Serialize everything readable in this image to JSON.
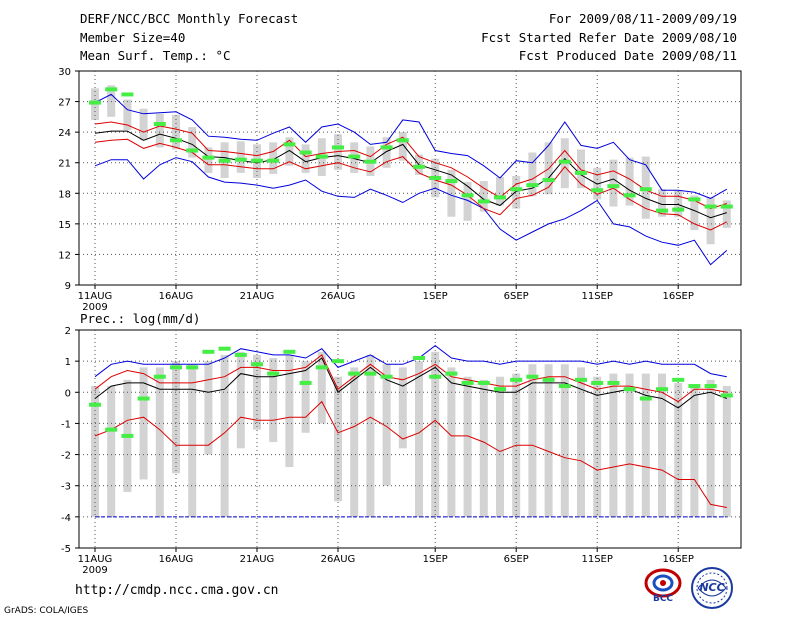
{
  "header": {
    "title": "DERF/NCC/BCC Monthly Forecast",
    "member_size": "Member Size=40",
    "variable": "Mean Surf. Temp.: °C",
    "period": "For 2009/08/11-2009/09/19",
    "refer_date": "Fcst Started Refer Date 2009/08/10",
    "produced_date": "Fcst Produced Date 2009/08/11"
  },
  "footer": {
    "url": "http://cmdp.ncc.cma.gov.cn",
    "grads": "GrADS: COLA/IGES",
    "logo_bcc": "BCC",
    "logo_ncc": "NCC"
  },
  "chart_data": [
    {
      "type": "line",
      "title": "Mean Surf. Temp.: °C",
      "x_tick_labels": [
        "11AUG",
        "16AUG",
        "21AUG",
        "26AUG",
        "1SEP",
        "6SEP",
        "11SEP",
        "16SEP"
      ],
      "x_tick_days": [
        1,
        6,
        11,
        16,
        22,
        27,
        32,
        37
      ],
      "year_label": "2009",
      "ylim": [
        9,
        30
      ],
      "y_ticks": [
        9,
        12,
        15,
        18,
        21,
        24,
        27,
        30
      ],
      "days": 40,
      "series": [
        {
          "name": "max",
          "color": "#0000dd",
          "values": [
            20.7,
            21.3,
            21.3,
            19.4,
            20.8,
            21.5,
            21.1,
            19.6,
            19.1,
            19.0,
            18.8,
            18.5,
            18.8,
            19.3,
            18.2,
            17.7,
            17.6,
            18.4,
            17.8,
            17.1,
            18.0,
            18.5,
            17.8,
            17.3,
            16.5,
            14.5,
            13.4,
            14.2,
            15.0,
            15.5,
            16.3,
            17.3,
            15.0,
            14.7,
            13.8,
            13.2,
            12.9,
            13.4,
            11.0,
            12.4
          ]
        },
        {
          "name": "max2",
          "color": "#0000dd",
          "values": [
            26.9,
            27.7,
            26.2,
            25.8,
            25.9,
            26.0,
            25.2,
            23.6,
            23.5,
            23.3,
            23.2,
            23.9,
            24.5,
            23.0,
            24.5,
            24.8,
            24.0,
            22.8,
            23.0,
            25.2,
            25.0,
            22.2,
            21.9,
            21.7,
            20.7,
            19.5,
            21.2,
            21.0,
            22.7,
            25.0,
            22.7,
            22.4,
            23.0,
            21.3,
            20.8,
            18.3,
            18.3,
            18.1,
            17.5,
            18.4
          ]
        },
        {
          "name": "upper-red",
          "color": "#dd0000",
          "values": [
            24.8,
            25.0,
            24.7,
            24.0,
            24.6,
            24.3,
            23.9,
            22.2,
            22.1,
            21.9,
            21.7,
            22.1,
            23.2,
            21.6,
            21.9,
            22.1,
            22.2,
            21.6,
            22.8,
            23.5,
            21.6,
            21.0,
            20.5,
            19.6,
            18.5,
            17.6,
            18.9,
            19.4,
            20.4,
            22.2,
            20.3,
            19.8,
            20.2,
            19.4,
            18.3,
            17.7,
            17.7,
            17.3,
            16.5,
            17.0
          ]
        },
        {
          "name": "mean",
          "color": "#000000",
          "values": [
            23.9,
            24.1,
            24.1,
            23.2,
            23.8,
            23.4,
            22.8,
            21.6,
            21.5,
            21.2,
            21.0,
            21.3,
            22.2,
            21.1,
            21.5,
            21.7,
            21.4,
            21.0,
            22.1,
            22.8,
            20.8,
            20.3,
            19.8,
            18.7,
            17.4,
            16.8,
            18.2,
            18.5,
            19.5,
            21.4,
            19.8,
            18.9,
            19.4,
            18.3,
            17.5,
            16.9,
            16.9,
            16.3,
            15.6,
            16.1
          ]
        },
        {
          "name": "lower-red",
          "color": "#dd0000",
          "values": [
            23.0,
            23.2,
            23.3,
            22.4,
            22.9,
            22.5,
            22.0,
            20.8,
            20.8,
            20.6,
            20.4,
            20.4,
            21.1,
            20.4,
            20.7,
            21.0,
            20.5,
            20.1,
            21.1,
            21.6,
            20.0,
            19.3,
            18.8,
            17.8,
            16.5,
            15.9,
            17.5,
            17.8,
            18.6,
            20.6,
            18.9,
            17.9,
            18.5,
            17.4,
            16.5,
            16.0,
            15.9,
            15.0,
            14.4,
            15.2
          ]
        }
      ],
      "boxes_low": [
        25.2,
        25.5,
        24.2,
        23.2,
        22.5,
        22.3,
        21.5,
        20.0,
        19.5,
        20.0,
        19.5,
        19.9,
        20.7,
        20.0,
        19.7,
        20.3,
        20.0,
        19.7,
        20.5,
        21.2,
        19.8,
        17.6,
        15.7,
        15.3,
        16.2,
        16.8,
        16.5,
        17.7,
        17.9,
        18.5,
        18.5,
        17.4,
        16.7,
        16.8,
        15.5,
        15.7,
        15.7,
        14.4,
        13.0,
        14.6
      ],
      "boxes_high": [
        28.3,
        28.6,
        27.2,
        26.3,
        25.8,
        25.7,
        24.5,
        22.5,
        23.0,
        23.1,
        22.8,
        23.0,
        23.5,
        22.8,
        23.4,
        23.8,
        23.0,
        22.6,
        23.5,
        24.0,
        21.8,
        21.4,
        20.3,
        19.1,
        19.2,
        19.6,
        19.7,
        22.0,
        23.0,
        23.4,
        22.3,
        20.5,
        21.3,
        21.5,
        21.6,
        18.4,
        18.3,
        17.8,
        17.6,
        17.3
      ],
      "observed": [
        26.9,
        28.2,
        27.7,
        null,
        24.8,
        23.2,
        22.2,
        21.5,
        21.2,
        21.3,
        21.2,
        21.2,
        22.8,
        22.0,
        21.6,
        22.5,
        21.6,
        21.1,
        22.5,
        23.2,
        20.6,
        19.5,
        19.2,
        17.8,
        17.2,
        17.6,
        18.4,
        18.8,
        19.3,
        21.1,
        20.0,
        18.3,
        18.7,
        17.8,
        18.4,
        16.3,
        16.4,
        17.4,
        16.7,
        16.7
      ]
    },
    {
      "type": "line",
      "title": "Prec.: log(mm/d)",
      "x_tick_labels": [
        "11AUG",
        "16AUG",
        "21AUG",
        "26AUG",
        "1SEP",
        "6SEP",
        "11SEP",
        "16SEP"
      ],
      "x_tick_days": [
        1,
        6,
        11,
        16,
        22,
        27,
        32,
        37
      ],
      "year_label": "2009",
      "ylim": [
        -5,
        2
      ],
      "y_ticks": [
        -5,
        -4,
        -3,
        -2,
        -1,
        0,
        1,
        2
      ],
      "days": 40,
      "series": [
        {
          "name": "max",
          "color": "#0000dd",
          "values": [
            0.5,
            0.9,
            1.0,
            0.9,
            0.9,
            0.9,
            0.9,
            0.9,
            1.1,
            1.4,
            1.3,
            1.2,
            1.2,
            1.1,
            1.4,
            0.8,
            1.0,
            1.2,
            0.9,
            0.9,
            1.1,
            1.5,
            1.1,
            1.0,
            1.0,
            0.9,
            1.0,
            1.0,
            1.0,
            1.0,
            1.0,
            0.9,
            1.0,
            0.9,
            1.0,
            0.9,
            0.9,
            0.9,
            0.6,
            0.5
          ]
        },
        {
          "name": "upper-red",
          "color": "#dd0000",
          "values": [
            0.1,
            0.5,
            0.7,
            0.6,
            0.3,
            0.3,
            0.3,
            0.4,
            0.5,
            0.8,
            0.8,
            0.7,
            0.7,
            0.8,
            1.2,
            0.1,
            0.5,
            0.9,
            0.5,
            0.4,
            0.6,
            0.9,
            0.5,
            0.4,
            0.3,
            0.2,
            0.2,
            0.4,
            0.5,
            0.5,
            0.3,
            0.1,
            0.2,
            0.2,
            0.1,
            0.0,
            -0.3,
            0.1,
            0.1,
            0.0
          ]
        },
        {
          "name": "mean",
          "color": "#000000",
          "values": [
            -0.2,
            0.2,
            0.3,
            0.3,
            0.1,
            0.1,
            0.1,
            0.0,
            0.1,
            0.6,
            0.5,
            0.5,
            0.6,
            0.7,
            1.1,
            0.0,
            0.4,
            0.8,
            0.4,
            0.2,
            0.5,
            0.8,
            0.3,
            0.2,
            0.1,
            0.0,
            0.0,
            0.3,
            0.3,
            0.3,
            0.1,
            -0.1,
            0.0,
            0.1,
            -0.1,
            -0.2,
            -0.5,
            -0.1,
            0.0,
            -0.2
          ]
        },
        {
          "name": "lower-red",
          "color": "#dd0000",
          "values": [
            -1.4,
            -1.2,
            -0.9,
            -0.8,
            -1.2,
            -1.7,
            -1.7,
            -1.7,
            -1.3,
            -0.8,
            -0.9,
            -0.9,
            -0.8,
            -0.8,
            -0.3,
            -1.3,
            -1.1,
            -0.8,
            -1.1,
            -1.5,
            -1.3,
            -0.9,
            -1.4,
            -1.4,
            -1.6,
            -1.9,
            -1.7,
            -1.7,
            -1.9,
            -2.1,
            -2.2,
            -2.5,
            -2.4,
            -2.3,
            -2.4,
            -2.5,
            -2.8,
            -2.8,
            -3.6,
            -3.7
          ]
        },
        {
          "name": "min",
          "color": "#0000dd",
          "values": [
            -4,
            -4,
            -4,
            -4,
            -4,
            -4,
            -4,
            -4,
            -4,
            -4,
            -4,
            -4,
            -4,
            -4,
            -4,
            -4,
            -4,
            -4,
            -4,
            -4,
            -4,
            -4,
            -4,
            -4,
            -4,
            -4,
            -4,
            -4,
            -4,
            -4,
            -4,
            -4,
            -4,
            -4,
            -4,
            -4,
            -4,
            -4,
            -4,
            -4
          ]
        }
      ],
      "boxes_low": [
        -4.0,
        -4.0,
        -3.2,
        -2.8,
        -4.0,
        -2.6,
        -4.0,
        -2.0,
        -4.0,
        -1.8,
        -1.2,
        -1.6,
        -2.4,
        -1.3,
        -1.0,
        -3.5,
        -4.0,
        -4.0,
        -3.0,
        -1.8,
        -4.0,
        -4.0,
        -4.0,
        -4.0,
        -4.0,
        -4.0,
        -4.0,
        -4.0,
        -4.0,
        -4.0,
        -4.0,
        -4.0,
        -4.0,
        -4.0,
        -4.0,
        -4.0,
        -4.0,
        -4.0,
        -4.0,
        -4.0
      ],
      "boxes_high": [
        0.2,
        0.2,
        0.4,
        0.8,
        0.8,
        1.0,
        0.9,
        1.0,
        1.2,
        1.3,
        1.2,
        1.1,
        1.2,
        1.0,
        1.3,
        0.5,
        0.8,
        1.2,
        0.9,
        0.8,
        1.0,
        1.3,
        0.8,
        0.5,
        0.4,
        0.5,
        0.6,
        0.9,
        0.9,
        0.9,
        0.8,
        0.5,
        0.6,
        0.6,
        0.6,
        0.6,
        0.3,
        0.2,
        0.4,
        0.2
      ],
      "observed": [
        -0.4,
        -1.2,
        -1.4,
        -0.2,
        0.5,
        0.8,
        0.8,
        1.3,
        1.4,
        1.2,
        0.9,
        0.6,
        1.3,
        0.3,
        0.8,
        1.0,
        0.6,
        0.6,
        0.5,
        null,
        1.1,
        0.5,
        0.6,
        0.3,
        0.3,
        0.1,
        0.4,
        0.5,
        0.4,
        0.2,
        0.4,
        0.3,
        0.3,
        0.1,
        -0.2,
        0.1,
        0.4,
        0.2,
        0.2,
        -0.1
      ]
    }
  ]
}
